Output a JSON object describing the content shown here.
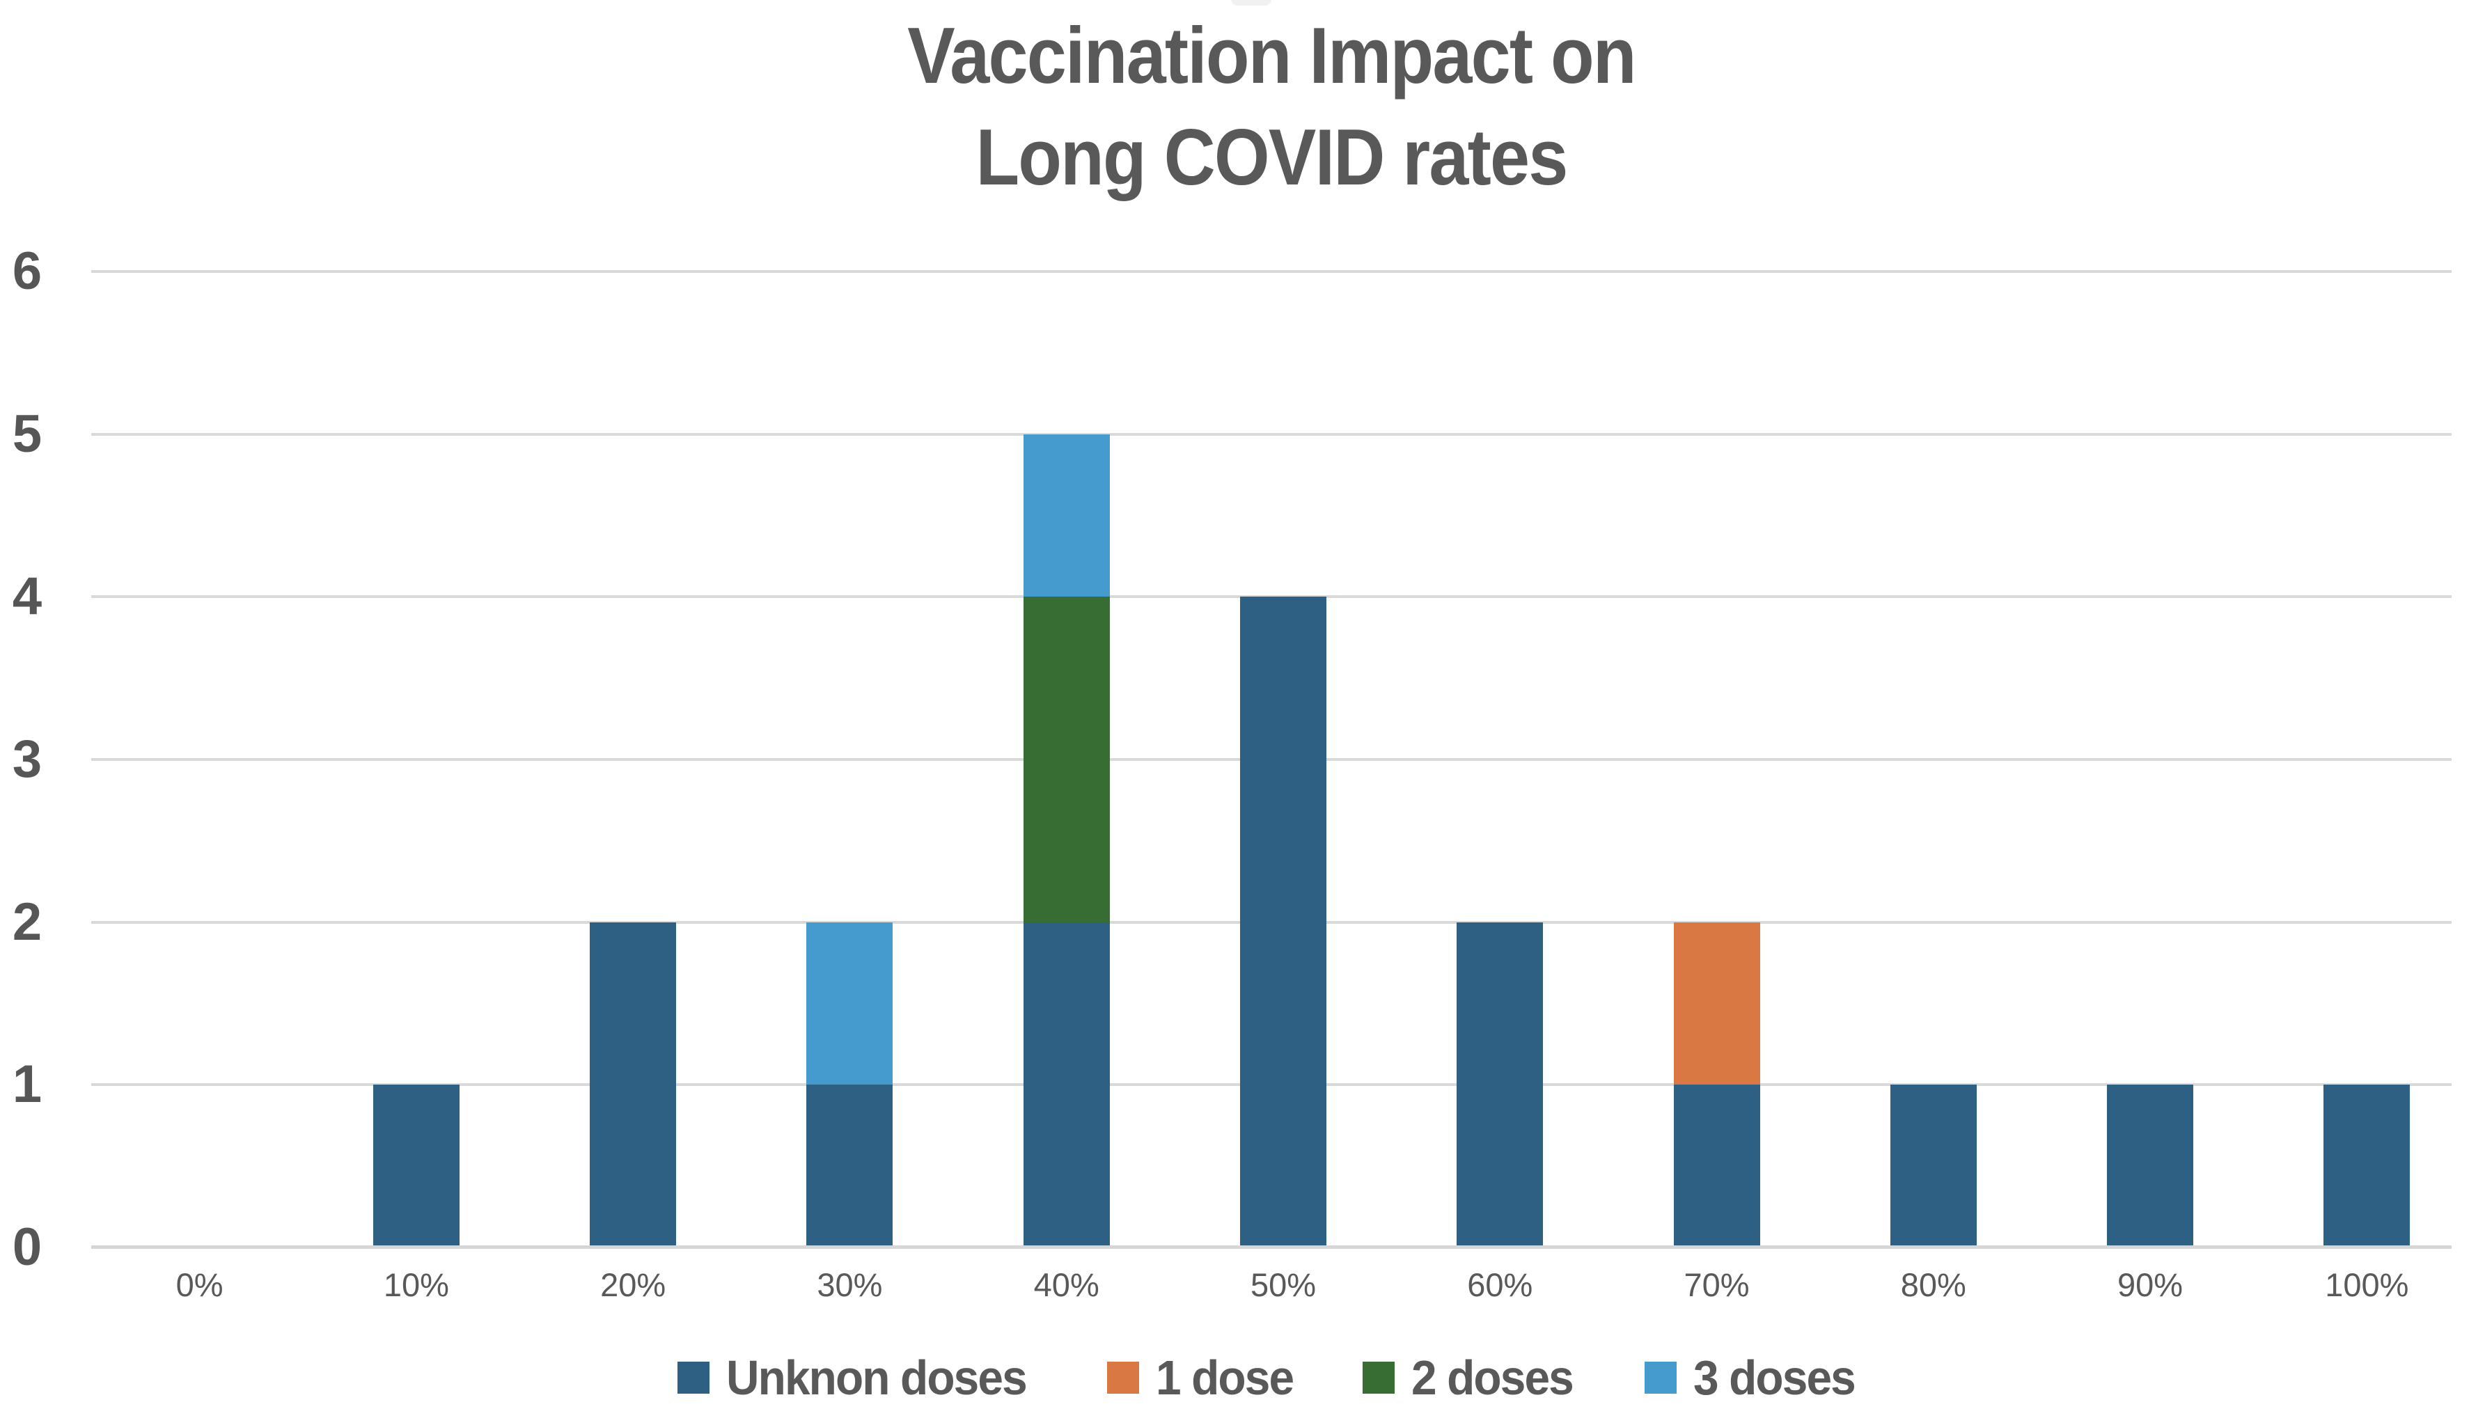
{
  "page": {
    "background": "#ffffff",
    "text_color": "#595959",
    "gridline_color": "#d9d9d9",
    "axis_line_color": "#d6d6d6"
  },
  "chart_data": {
    "type": "bar",
    "stacked": true,
    "title": "Vaccination Impact on Long COVID rates",
    "title_lines": [
      "Vaccination Impact on",
      "Long COVID rates"
    ],
    "xlabel": "",
    "ylabel": "",
    "categories": [
      "0%",
      "10%",
      "20%",
      "30%",
      "40%",
      "50%",
      "60%",
      "70%",
      "80%",
      "90%",
      "100%"
    ],
    "series": [
      {
        "name": "Unknon doses",
        "color": "#2d6082",
        "values": [
          0,
          1,
          2,
          1,
          2,
          4,
          2,
          1,
          1,
          1,
          1
        ]
      },
      {
        "name": "1 dose",
        "color": "#d97843",
        "values": [
          0,
          0,
          0,
          0,
          0,
          0,
          0,
          1,
          0,
          0,
          0
        ]
      },
      {
        "name": "2 doses",
        "color": "#376c32",
        "values": [
          0,
          0,
          0,
          0,
          2,
          0,
          0,
          0,
          0,
          0,
          0
        ]
      },
      {
        "name": "3 doses",
        "color": "#459bce",
        "values": [
          0,
          0,
          0,
          1,
          1,
          0,
          0,
          0,
          0,
          0,
          0
        ]
      }
    ],
    "stack_order_bottom_to_top": [
      "Unknon doses",
      "1 dose",
      "2 doses",
      "3 doses"
    ],
    "totals": [
      0,
      1,
      2,
      2,
      5,
      4,
      2,
      2,
      1,
      1,
      1
    ],
    "ylim": [
      0,
      6
    ],
    "yticks": [
      0,
      1,
      2,
      3,
      4,
      5,
      6
    ],
    "grid": true,
    "legend_position": "bottom"
  }
}
